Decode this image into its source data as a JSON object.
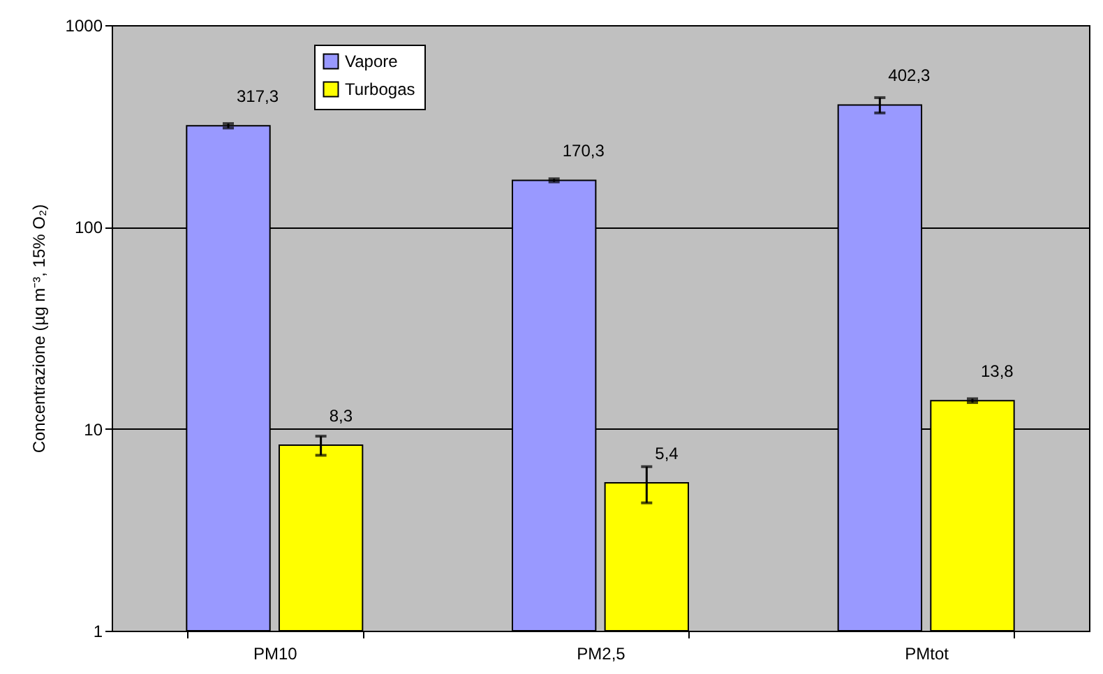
{
  "chart_data": {
    "type": "bar",
    "ylabel": "Concentrazione (µg m⁻³, 15% O₂)",
    "categories": [
      "PM10",
      "PM2,5",
      "PMtot"
    ],
    "series": [
      {
        "name": "Vapore",
        "color": "#9999ff",
        "values": [
          317.3,
          170.3,
          402.3
        ],
        "errors": [
          8,
          3,
          35
        ],
        "value_labels": [
          "317,3",
          "170,3",
          "402,3"
        ]
      },
      {
        "name": "Turbogas",
        "color": "#ffff00",
        "values": [
          8.3,
          5.4,
          13.8
        ],
        "errors": [
          0.9,
          1.1,
          0.3
        ],
        "value_labels": [
          "8,3",
          "5,4",
          "13,8"
        ]
      }
    ],
    "log": true,
    "ylim": [
      1,
      1000
    ],
    "yticks": [
      1,
      10,
      100,
      1000
    ],
    "grid": "y",
    "legend": "top left"
  }
}
